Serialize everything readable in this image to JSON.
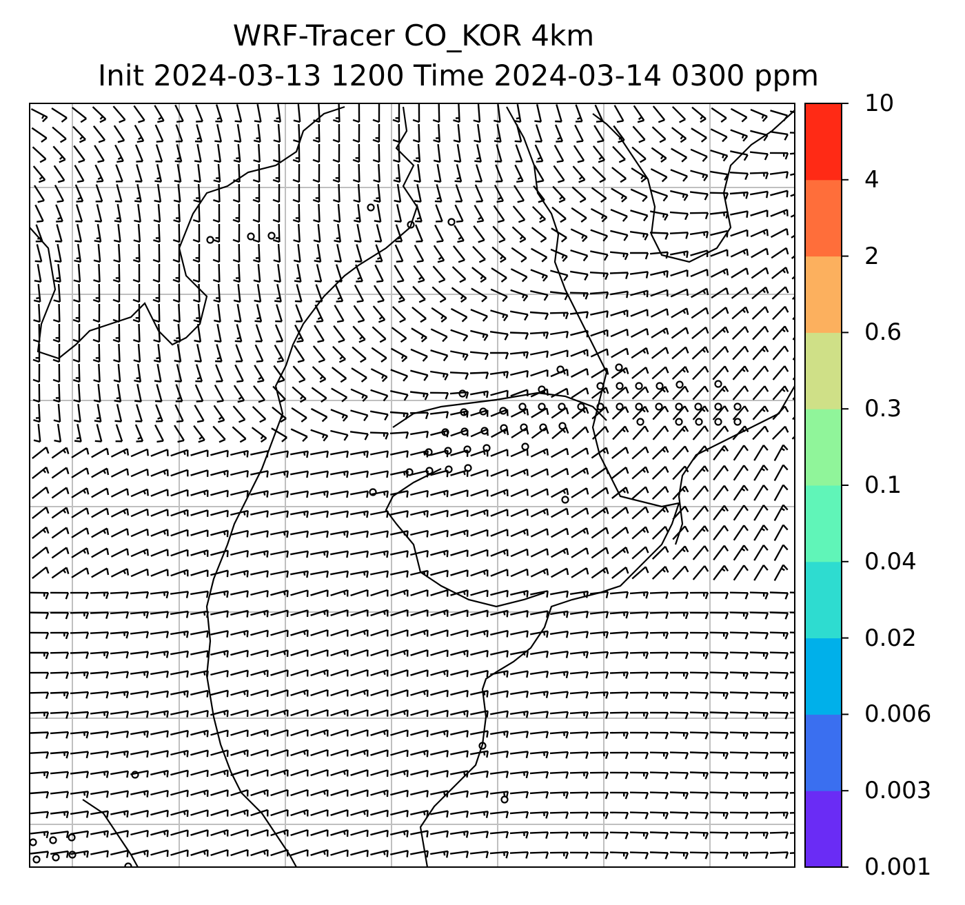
{
  "title": {
    "line1": "WRF-Tracer CO_KOR 4km",
    "line2": "Init 2024-03-13 1200 Time 2024-03-14 0300 ppm"
  },
  "colorbar": {
    "levels": [
      "0.001",
      "0.003",
      "0.006",
      "0.02",
      "0.04",
      "0.1",
      "0.3",
      "0.6",
      "2",
      "4",
      "10"
    ],
    "colors": [
      "#6a2cf5",
      "#3a6ff0",
      "#00b0ea",
      "#2edcd0",
      "#60f5b8",
      "#90f59a",
      "#cfe087",
      "#fcb05e",
      "#ff6e3a",
      "#ff2a15"
    ]
  },
  "map": {
    "gridlines": true,
    "wind_barbs": true,
    "calm_markers": true,
    "coastlines": true,
    "gridline_color": "#bfbfbf"
  }
}
